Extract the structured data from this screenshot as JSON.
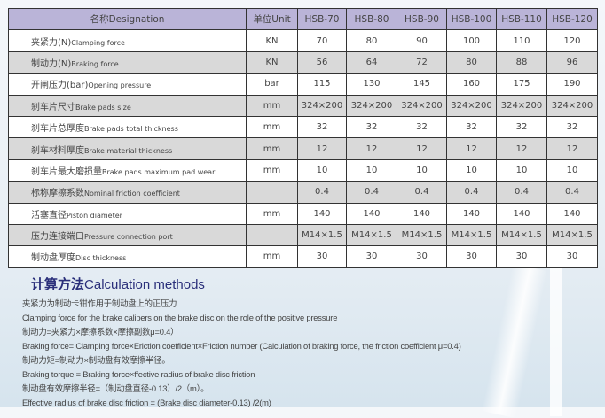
{
  "table": {
    "headers": [
      "名称Designation",
      "单位Unit",
      "HSB-70",
      "HSB-80",
      "HSB-90",
      "HSB-100",
      "HSB-110",
      "HSB-120"
    ],
    "rows": [
      {
        "cn": "夹紧力(N)",
        "en": "Clamping force",
        "unit": "KN",
        "values": [
          "70",
          "80",
          "90",
          "100",
          "110",
          "120"
        ]
      },
      {
        "cn": "制动力(N)",
        "en": "Braking force",
        "unit": "KN",
        "values": [
          "56",
          "64",
          "72",
          "80",
          "88",
          "96"
        ]
      },
      {
        "cn": "开闸压力(bar)",
        "en": "Opening pressure",
        "unit": "bar",
        "values": [
          "115",
          "130",
          "145",
          "160",
          "175",
          "190"
        ]
      },
      {
        "cn": "刹车片尺寸",
        "en": "Brake pads size",
        "unit": "mm",
        "values": [
          "324×200",
          "324×200",
          "324×200",
          "324×200",
          "324×200",
          "324×200"
        ]
      },
      {
        "cn": "刹车片总厚度",
        "en": "Brake pads total thickness",
        "unit": "mm",
        "values": [
          "32",
          "32",
          "32",
          "32",
          "32",
          "32"
        ]
      },
      {
        "cn": "刹车材料厚度",
        "en": "Brake material thickness",
        "unit": "mm",
        "values": [
          "12",
          "12",
          "12",
          "12",
          "12",
          "12"
        ]
      },
      {
        "cn": "刹车片最大磨损量",
        "en": "Brake pads maximum pad wear",
        "unit": "mm",
        "values": [
          "10",
          "10",
          "10",
          "10",
          "10",
          "10"
        ]
      },
      {
        "cn": "标称摩擦系数",
        "en": "Nominal friction coefficient",
        "unit": "",
        "values": [
          "0.4",
          "0.4",
          "0.4",
          "0.4",
          "0.4",
          "0.4"
        ]
      },
      {
        "cn": "活塞直径",
        "en": "Piston diameter",
        "unit": "mm",
        "values": [
          "140",
          "140",
          "140",
          "140",
          "140",
          "140"
        ]
      },
      {
        "cn": "压力连接端口",
        "en": "Pressure connection port",
        "unit": "",
        "values": [
          "M14×1.5",
          "M14×1.5",
          "M14×1.5",
          "M14×1.5",
          "M14×1.5",
          "M14×1.5"
        ]
      },
      {
        "cn": "制动盘厚度",
        "en": "Disc thickness",
        "unit": "mm",
        "values": [
          "30",
          "30",
          "30",
          "30",
          "30",
          "30"
        ]
      }
    ]
  },
  "calc": {
    "title_cn": "计算方法",
    "title_en": "Calculation methods",
    "lines": [
      "夹紧力为制动卡钳作用于制动盘上的正压力",
      "Clamping force for the brake calipers on the brake disc on the role of the positive pressure",
      "制动力=夹紧力×摩擦系数×摩擦副数μ=0.4）",
      "Braking force= Clamping force×Eriction coefficient×Friction number (Calculation of braking force, the friction coefficient μ=0.4)",
      "制动力矩=制动力×制动盘有效摩擦半径。",
      "Braking torque = Braking force×ffective radius of brake disc friction",
      "制动盘有效摩擦半径=（制动盘直径-0.13）/2（m）。",
      "Effective radius of brake disc friction = (Brake disc diameter-0.13) /2(m)"
    ]
  }
}
